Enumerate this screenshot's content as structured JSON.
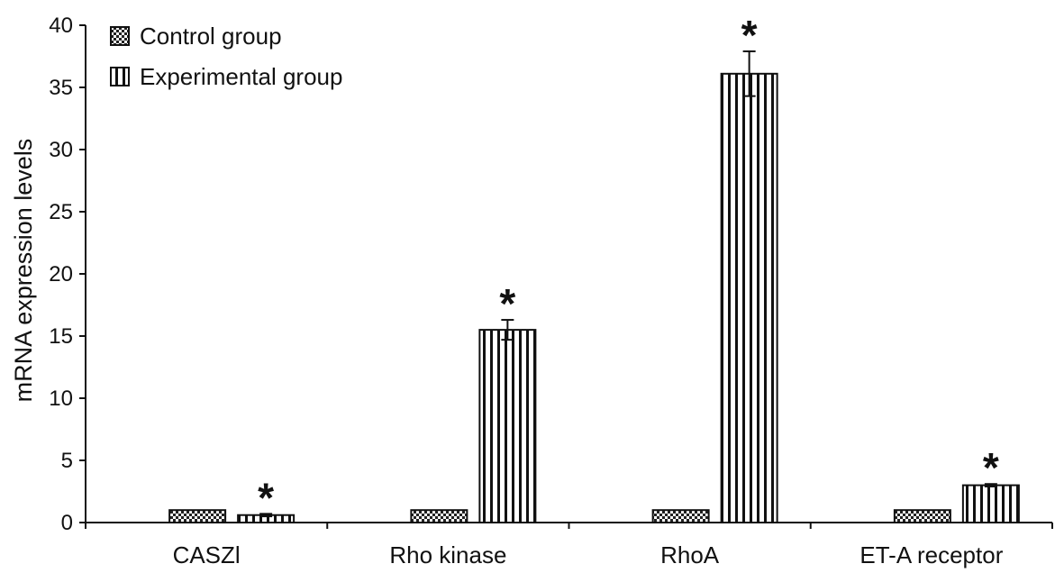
{
  "chart_data": {
    "type": "bar",
    "title": "",
    "xlabel": "",
    "ylabel": "mRNA expression levels",
    "ylim": [
      0,
      40
    ],
    "yticks": [
      0,
      5,
      10,
      15,
      20,
      25,
      30,
      35,
      40
    ],
    "categories": [
      "CASZl",
      "Rho kinase",
      "RhoA",
      "ET-A receptor"
    ],
    "series": [
      {
        "name": "Control group",
        "values": [
          1,
          1,
          1,
          1
        ],
        "errors": [
          0,
          0,
          0,
          0
        ],
        "pattern": "checker"
      },
      {
        "name": "Experimental group",
        "values": [
          0.6,
          15.5,
          36.1,
          3.0
        ],
        "errors": [
          0.1,
          0.8,
          1.8,
          0.1
        ],
        "pattern": "vertical-stripes"
      }
    ],
    "annotations": [
      {
        "text": "*",
        "category": "CASZl",
        "series": "Experimental group"
      },
      {
        "text": "*",
        "category": "Rho kinase",
        "series": "Experimental group"
      },
      {
        "text": "*",
        "category": "RhoA",
        "series": "Experimental group"
      },
      {
        "text": "*",
        "category": "ET-A receptor",
        "series": "Experimental group"
      }
    ],
    "grid": false,
    "legend": "top-left"
  }
}
